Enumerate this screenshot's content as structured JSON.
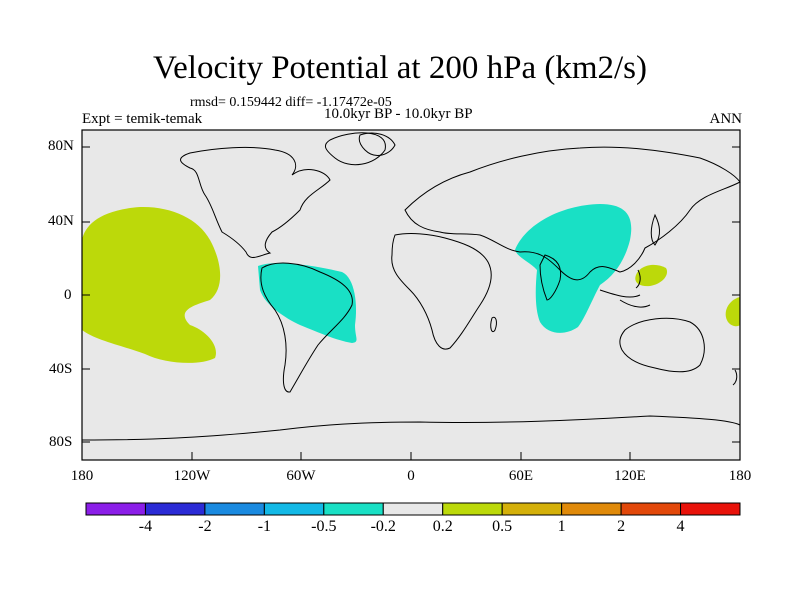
{
  "title": "Velocity Potential at 200 hPa (km2/s)",
  "stats_line": "rmsd= 0.159442 diff= -1.17472e-05",
  "period_line": "10.0kyr BP - 10.0kyr BP",
  "experiment_label": "Expt = temik-temak",
  "season_label": "ANN",
  "latitude_labels": [
    "80N",
    "40N",
    "0",
    "40S",
    "80S"
  ],
  "longitude_labels": [
    "180",
    "120W",
    "60W",
    "0",
    "60E",
    "120E",
    "180"
  ],
  "colorbar": {
    "colors": [
      "#8b1ee8",
      "#2b2bd6",
      "#1a8ae0",
      "#13b9e6",
      "#19e0c5",
      "#e8e8e8",
      "#bcd90a",
      "#d4b00a",
      "#e08a0a",
      "#e2480a",
      "#e8120a"
    ],
    "labels": [
      "-4",
      "-2",
      "-1",
      "-0.5",
      "-0.2",
      "0.2",
      "0.5",
      "1",
      "2",
      "4"
    ]
  },
  "colors": {
    "background": "#e8e8e8",
    "positive_fill": "#bcd90a",
    "negative_fill": "#19e0c5"
  }
}
